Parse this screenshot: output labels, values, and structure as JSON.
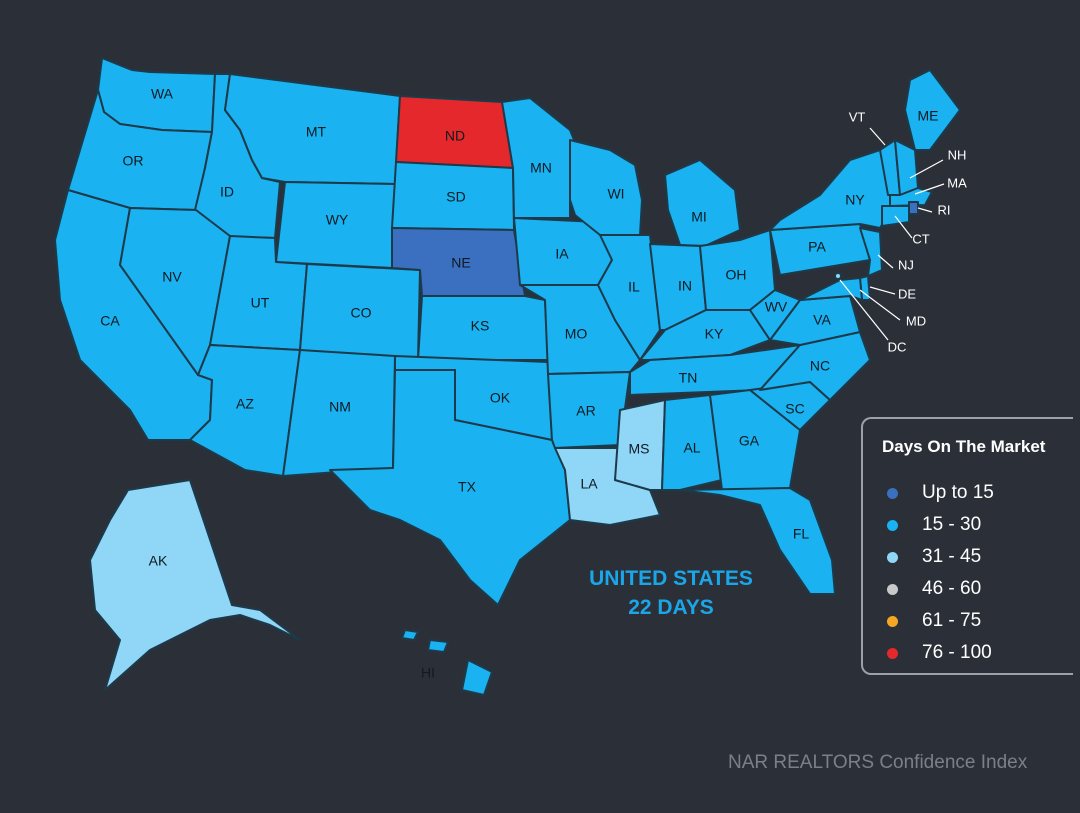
{
  "legend": {
    "title": "Days On The Market",
    "items": [
      {
        "label": "Up to 15",
        "color": "#3b6fbf"
      },
      {
        "label": "15 - 30",
        "color": "#1ab2f0"
      },
      {
        "label": "31 - 45",
        "color": "#8fd6f7"
      },
      {
        "label": "46 - 60",
        "color": "#c9c9c9"
      },
      {
        "label": "61 - 75",
        "color": "#f5a623"
      },
      {
        "label": "76 - 100",
        "color": "#e5282b"
      }
    ]
  },
  "summary": {
    "line1": "UNITED STATES",
    "line2": "22 DAYS"
  },
  "source": "NAR REALTORS Confidence Index",
  "states": [
    {
      "abbr": "WA",
      "bin": "15 - 30"
    },
    {
      "abbr": "OR",
      "bin": "15 - 30"
    },
    {
      "abbr": "CA",
      "bin": "15 - 30"
    },
    {
      "abbr": "ID",
      "bin": "15 - 30"
    },
    {
      "abbr": "NV",
      "bin": "15 - 30"
    },
    {
      "abbr": "MT",
      "bin": "15 - 30"
    },
    {
      "abbr": "WY",
      "bin": "15 - 30"
    },
    {
      "abbr": "UT",
      "bin": "15 - 30"
    },
    {
      "abbr": "AZ",
      "bin": "15 - 30"
    },
    {
      "abbr": "CO",
      "bin": "15 - 30"
    },
    {
      "abbr": "NM",
      "bin": "15 - 30"
    },
    {
      "abbr": "ND",
      "bin": "76 - 100"
    },
    {
      "abbr": "SD",
      "bin": "15 - 30"
    },
    {
      "abbr": "NE",
      "bin": "Up to 15"
    },
    {
      "abbr": "KS",
      "bin": "15 - 30"
    },
    {
      "abbr": "OK",
      "bin": "15 - 30"
    },
    {
      "abbr": "TX",
      "bin": "15 - 30"
    },
    {
      "abbr": "MN",
      "bin": "15 - 30"
    },
    {
      "abbr": "IA",
      "bin": "15 - 30"
    },
    {
      "abbr": "MO",
      "bin": "15 - 30"
    },
    {
      "abbr": "AR",
      "bin": "15 - 30"
    },
    {
      "abbr": "LA",
      "bin": "31 - 45"
    },
    {
      "abbr": "WI",
      "bin": "15 - 30"
    },
    {
      "abbr": "IL",
      "bin": "15 - 30"
    },
    {
      "abbr": "MI",
      "bin": "15 - 30"
    },
    {
      "abbr": "IN",
      "bin": "15 - 30"
    },
    {
      "abbr": "OH",
      "bin": "15 - 30"
    },
    {
      "abbr": "KY",
      "bin": "15 - 30"
    },
    {
      "abbr": "TN",
      "bin": "15 - 30"
    },
    {
      "abbr": "MS",
      "bin": "31 - 45"
    },
    {
      "abbr": "AL",
      "bin": "15 - 30"
    },
    {
      "abbr": "GA",
      "bin": "15 - 30"
    },
    {
      "abbr": "FL",
      "bin": "15 - 30"
    },
    {
      "abbr": "SC",
      "bin": "15 - 30"
    },
    {
      "abbr": "NC",
      "bin": "15 - 30"
    },
    {
      "abbr": "VA",
      "bin": "15 - 30"
    },
    {
      "abbr": "WV",
      "bin": "15 - 30"
    },
    {
      "abbr": "PA",
      "bin": "15 - 30"
    },
    {
      "abbr": "NY",
      "bin": "15 - 30"
    },
    {
      "abbr": "ME",
      "bin": "15 - 30"
    },
    {
      "abbr": "AK",
      "bin": "31 - 45"
    },
    {
      "abbr": "HI",
      "bin": "15 - 30"
    },
    {
      "abbr": "VT",
      "bin": "15 - 30"
    },
    {
      "abbr": "NH",
      "bin": "15 - 30"
    },
    {
      "abbr": "MA",
      "bin": "15 - 30"
    },
    {
      "abbr": "RI",
      "bin": "Up to 15"
    },
    {
      "abbr": "CT",
      "bin": "15 - 30"
    },
    {
      "abbr": "NJ",
      "bin": "15 - 30"
    },
    {
      "abbr": "DE",
      "bin": "15 - 30"
    },
    {
      "abbr": "MD",
      "bin": "15 - 30"
    },
    {
      "abbr": "DC",
      "bin": "31 - 45"
    }
  ]
}
